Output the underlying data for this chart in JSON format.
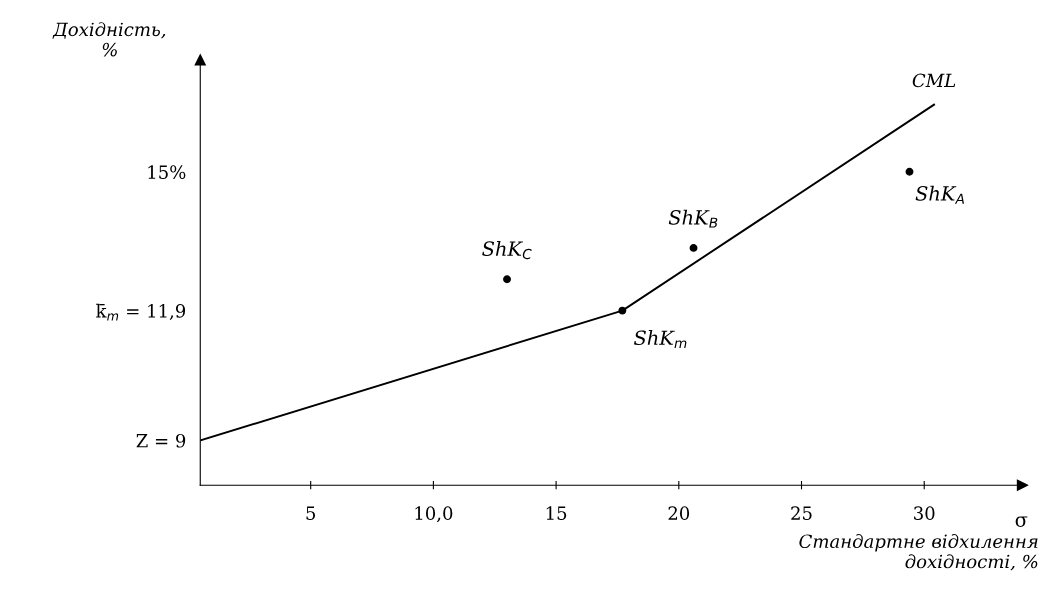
{
  "chart_data": {
    "type": "scatter",
    "ylabel": "Дохідність,\n%",
    "xlabel": "Стандартне відхилення\nдохідності, %",
    "xlim": [
      0.5,
      34
    ],
    "xticks": [
      5,
      {
        "value": 10,
        "label": "10,0"
      },
      15,
      20,
      25,
      30
    ],
    "ylim": [
      8,
      17.5
    ],
    "yticks": [
      {
        "value": 9,
        "label": "Z = 9"
      },
      {
        "value": 11.9,
        "label": "k̄$_{m}$ = 11,9"
      },
      {
        "value": 15,
        "label": "15%"
      }
    ],
    "series": [
      {
        "name": "CML",
        "type": "line",
        "color": "#000000",
        "x": [
          0.5,
          17.7,
          30.4
        ],
        "values": [
          9,
          11.9,
          16.5
        ]
      },
      {
        "color": "#000000",
        "marker": "circle",
        "x": [
          13.0,
          17.7,
          20.6,
          29.4
        ],
        "values": [
          12.6,
          11.9,
          13.3,
          15
        ]
      }
    ],
    "annotations": [
      {
        "text": "ShK$_{C}$",
        "x": 13.0,
        "y": 12.6
      },
      {
        "text": "ShK$_{m}$",
        "x": 17.7,
        "y": 11.9
      },
      {
        "text": "ShK$_{B}$",
        "x": 20.6,
        "y": 13.3
      },
      {
        "text": "ShK$_{A}$",
        "x": 29.4,
        "y": 15
      },
      "σ"
    ],
    "grid": false,
    "legend": false
  }
}
